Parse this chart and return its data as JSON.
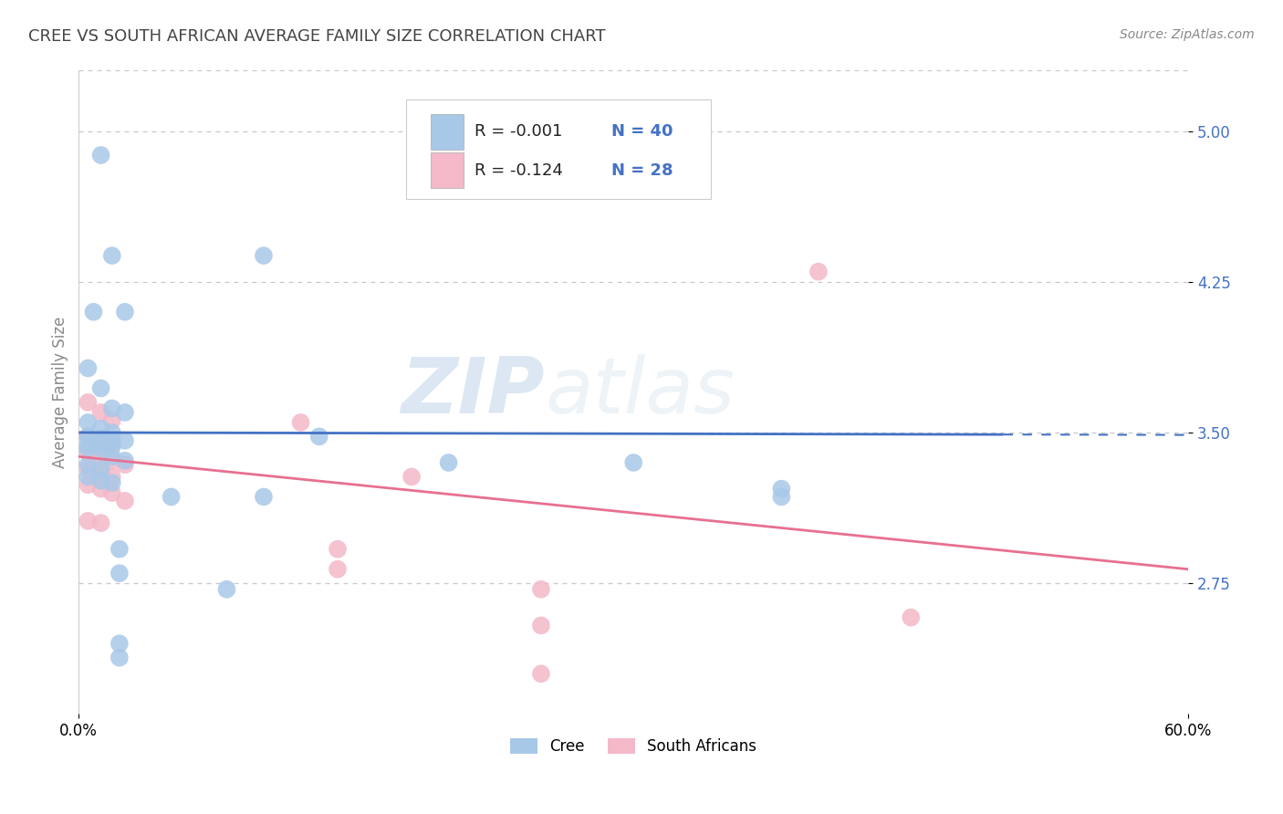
{
  "title": "CREE VS SOUTH AFRICAN AVERAGE FAMILY SIZE CORRELATION CHART",
  "source": "Source: ZipAtlas.com",
  "ylabel": "Average Family Size",
  "xlim": [
    0.0,
    0.6
  ],
  "ylim": [
    2.1,
    5.3
  ],
  "yticks": [
    2.75,
    3.5,
    4.25,
    5.0
  ],
  "background_color": "#ffffff",
  "grid_color": "#c8c8c8",
  "watermark_zip": "ZIP",
  "watermark_atlas": "atlas",
  "legend_r1": "R = -0.001",
  "legend_n1": "N = 40",
  "legend_r2": "R = -0.124",
  "legend_n2": "N = 28",
  "cree_color": "#a8c8e8",
  "sa_color": "#f4b8c8",
  "cree_line_color": "#4472c4",
  "sa_line_color": "#e87090",
  "cree_scatter": [
    [
      0.012,
      4.88
    ],
    [
      0.018,
      4.38
    ],
    [
      0.1,
      4.38
    ],
    [
      0.008,
      4.1
    ],
    [
      0.025,
      4.1
    ],
    [
      0.005,
      3.82
    ],
    [
      0.012,
      3.72
    ],
    [
      0.018,
      3.62
    ],
    [
      0.025,
      3.6
    ],
    [
      0.005,
      3.55
    ],
    [
      0.012,
      3.52
    ],
    [
      0.018,
      3.5
    ],
    [
      0.005,
      3.48
    ],
    [
      0.012,
      3.47
    ],
    [
      0.018,
      3.46
    ],
    [
      0.025,
      3.46
    ],
    [
      0.005,
      3.44
    ],
    [
      0.012,
      3.44
    ],
    [
      0.018,
      3.43
    ],
    [
      0.005,
      3.42
    ],
    [
      0.012,
      3.42
    ],
    [
      0.018,
      3.38
    ],
    [
      0.025,
      3.36
    ],
    [
      0.005,
      3.34
    ],
    [
      0.012,
      3.32
    ],
    [
      0.13,
      3.48
    ],
    [
      0.2,
      3.35
    ],
    [
      0.3,
      3.35
    ],
    [
      0.38,
      3.22
    ],
    [
      0.005,
      3.28
    ],
    [
      0.012,
      3.26
    ],
    [
      0.018,
      3.25
    ],
    [
      0.05,
      3.18
    ],
    [
      0.1,
      3.18
    ],
    [
      0.38,
      3.18
    ],
    [
      0.022,
      2.92
    ],
    [
      0.022,
      2.8
    ],
    [
      0.08,
      2.72
    ],
    [
      0.022,
      2.45
    ],
    [
      0.022,
      2.38
    ]
  ],
  "sa_scatter": [
    [
      0.4,
      4.3
    ],
    [
      0.005,
      3.65
    ],
    [
      0.012,
      3.6
    ],
    [
      0.018,
      3.56
    ],
    [
      0.12,
      3.55
    ],
    [
      0.005,
      3.48
    ],
    [
      0.012,
      3.46
    ],
    [
      0.018,
      3.44
    ],
    [
      0.005,
      3.4
    ],
    [
      0.012,
      3.38
    ],
    [
      0.018,
      3.36
    ],
    [
      0.025,
      3.34
    ],
    [
      0.005,
      3.32
    ],
    [
      0.012,
      3.3
    ],
    [
      0.018,
      3.28
    ],
    [
      0.18,
      3.28
    ],
    [
      0.005,
      3.24
    ],
    [
      0.012,
      3.22
    ],
    [
      0.018,
      3.2
    ],
    [
      0.025,
      3.16
    ],
    [
      0.005,
      3.06
    ],
    [
      0.012,
      3.05
    ],
    [
      0.14,
      2.92
    ],
    [
      0.14,
      2.82
    ],
    [
      0.25,
      2.72
    ],
    [
      0.25,
      2.54
    ],
    [
      0.45,
      2.58
    ],
    [
      0.25,
      2.3
    ]
  ],
  "cree_line": {
    "x0": 0.0,
    "x1": 0.5,
    "y0": 3.5,
    "y1": 3.49
  },
  "cree_line_dash": {
    "x0": 0.5,
    "x1": 0.6,
    "y0": 3.49,
    "y1": 3.488
  },
  "sa_line": {
    "x0": 0.0,
    "x1": 0.6,
    "y0": 3.38,
    "y1": 2.82
  }
}
